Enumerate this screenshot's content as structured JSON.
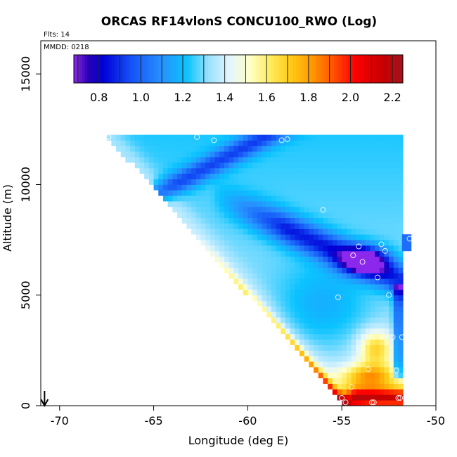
{
  "chart_data": {
    "type": "heatmap",
    "title": "ORCAS RF14vlonS CONCU100_RWO (Log)",
    "flights_label": "Flts: 14",
    "date_label": "MMDD: 0218",
    "xlabel": "Longitude (deg E)",
    "ylabel": "Altitude (m)",
    "xlim": [
      -71,
      -50
    ],
    "ylim": [
      0,
      16500
    ],
    "xticks": [
      -70,
      -65,
      -60,
      -55,
      -50
    ],
    "xtick_labels": [
      "-70",
      "-65",
      "-60",
      "-55",
      "-50"
    ],
    "yticks": [
      0,
      5000,
      10000,
      15000
    ],
    "ytick_labels": [
      "0",
      "5000",
      "10000",
      "15000"
    ],
    "colorbar": {
      "range": [
        0.68,
        2.25
      ],
      "ticks": [
        0.8,
        1.0,
        1.2,
        1.4,
        1.6,
        1.8,
        2.0,
        2.2
      ],
      "tick_labels": [
        "0.8",
        "1.0",
        "1.2",
        "1.4",
        "1.6",
        "1.8",
        "2.0",
        "2.2"
      ]
    },
    "domain": {
      "lon_left_top": -67.5,
      "lon_right": -51.8,
      "alt_top": 12200,
      "lon_left_bottom": -54.8,
      "alt_bottom": 0
    },
    "arrow_lon": -70.8,
    "points": [
      {
        "lon": -67.4,
        "alt": 12150
      },
      {
        "lon": -62.7,
        "alt": 12150
      },
      {
        "lon": -61.8,
        "alt": 12000
      },
      {
        "lon": -58.2,
        "alt": 12000
      },
      {
        "lon": -57.9,
        "alt": 12050
      },
      {
        "lon": -56.0,
        "alt": 8850
      },
      {
        "lon": -54.1,
        "alt": 7200
      },
      {
        "lon": -54.4,
        "alt": 6800
      },
      {
        "lon": -53.9,
        "alt": 6500
      },
      {
        "lon": -52.9,
        "alt": 7300
      },
      {
        "lon": -52.7,
        "alt": 7000
      },
      {
        "lon": -51.4,
        "alt": 7550
      },
      {
        "lon": -51.6,
        "alt": 6100
      },
      {
        "lon": -53.1,
        "alt": 5800
      },
      {
        "lon": -55.2,
        "alt": 4900
      },
      {
        "lon": -52.5,
        "alt": 5000
      },
      {
        "lon": -51.8,
        "alt": 3100
      },
      {
        "lon": -52.3,
        "alt": 3100
      },
      {
        "lon": -53.6,
        "alt": 1650
      },
      {
        "lon": -52.1,
        "alt": 1600
      },
      {
        "lon": -54.5,
        "alt": 850
      },
      {
        "lon": -55.0,
        "alt": 350
      },
      {
        "lon": -54.8,
        "alt": 150
      },
      {
        "lon": -53.4,
        "alt": 150
      },
      {
        "lon": -53.3,
        "alt": 150
      },
      {
        "lon": -51.9,
        "alt": 350
      },
      {
        "lon": -52.0,
        "alt": 350
      }
    ]
  }
}
